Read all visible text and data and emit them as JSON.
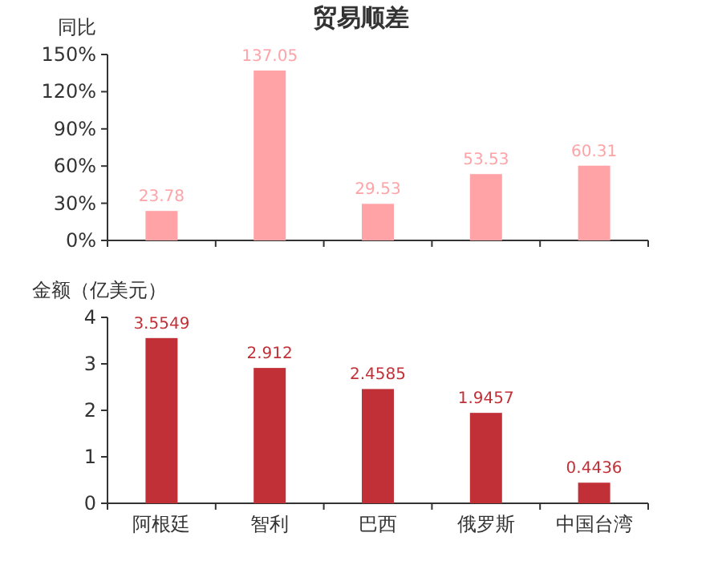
{
  "chart_data": [
    {
      "type": "bar",
      "title": "贸易顺差",
      "ylabel": "同比",
      "categories": [
        null,
        null,
        null,
        null,
        null
      ],
      "values": [
        23.78,
        137.05,
        29.53,
        53.53,
        60.31
      ],
      "color": "#ffa3a6",
      "ylim": [
        0,
        150
      ],
      "yticks": [
        {
          "value": 0,
          "label": "0%"
        },
        {
          "value": 30,
          "label": "30%"
        },
        {
          "value": 60,
          "label": "60%"
        },
        {
          "value": 90,
          "label": "90%"
        },
        {
          "value": 120,
          "label": "120%"
        },
        {
          "value": 150,
          "label": "150%"
        }
      ],
      "data_labels": true
    },
    {
      "type": "bar",
      "ylabel": "金额（亿美元）",
      "categories": [
        "阿根廷",
        "智利",
        "巴西",
        "俄罗斯",
        "中国台湾"
      ],
      "values": [
        3.5549,
        2.912,
        2.4585,
        1.9457,
        0.4436
      ],
      "color": "#c23037",
      "ylim": [
        0,
        4
      ],
      "yticks": [
        0,
        1,
        2,
        3,
        4
      ],
      "data_labels": true
    }
  ]
}
